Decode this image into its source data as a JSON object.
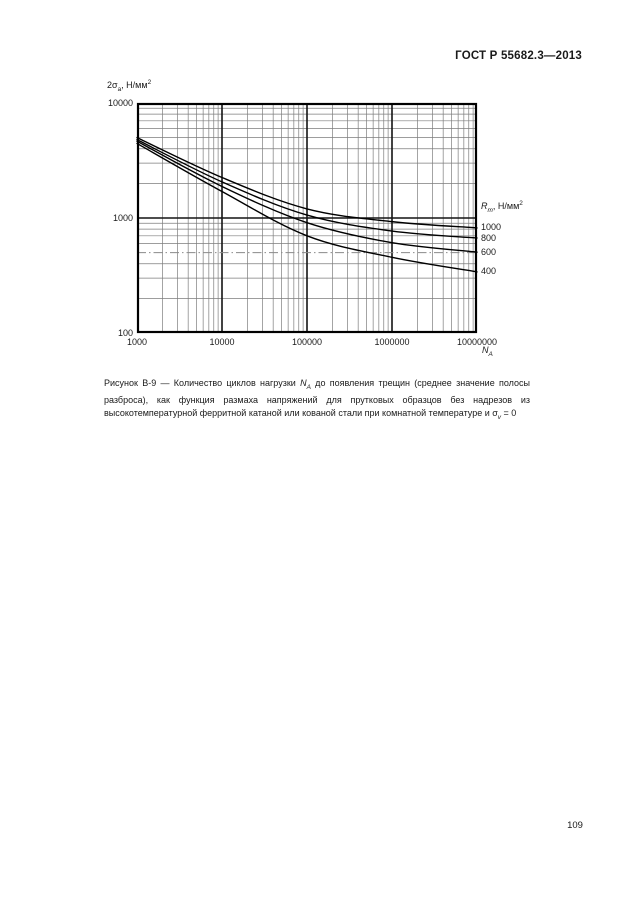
{
  "page": {
    "header": "ГОСТ Р 55682.3—2013",
    "page_number": "109"
  },
  "figure": {
    "caption_parts": [
      {
        "t": "Рисунок В-9 — Количество циклов нагрузки "
      },
      {
        "t": "N",
        "i": true
      },
      {
        "t": "A",
        "sub": true,
        "i": true
      },
      {
        "t": " до появления трещин (среднее значение полосы разброса), как функция размаха напряжений для прутковых образцов без надрезов из высокотемпературной ферритной катаной или кованой стали при комнатной температуре и σ"
      },
      {
        "t": "v",
        "sub": true,
        "i": true
      },
      {
        "t": " = 0"
      }
    ]
  },
  "chart_data": {
    "type": "line",
    "title": "",
    "x_scale": "log",
    "y_scale": "log",
    "xlim": [
      1000,
      10000000
    ],
    "ylim": [
      100,
      10000
    ],
    "grid": true,
    "legend_position": "right",
    "y_axis_title_parts": [
      {
        "t": "2σ"
      },
      {
        "t": "а",
        "sub": true
      },
      {
        "t": ", Н/мм"
      },
      {
        "t": "2",
        "sup": true
      }
    ],
    "x_axis_title_parts": [
      {
        "t": "N",
        "i": true
      },
      {
        "t": "A",
        "sub": true,
        "i": true
      }
    ],
    "legend_title_parts": [
      {
        "t": "R",
        "i": true
      },
      {
        "t": "m",
        "sub": true,
        "i": true
      },
      {
        "t": ", Н/мм"
      },
      {
        "t": "2",
        "sup": true
      }
    ],
    "x_ticks": [
      {
        "v": 1000,
        "label": "1000"
      },
      {
        "v": 10000,
        "label": "10000"
      },
      {
        "v": 100000,
        "label": "100000"
      },
      {
        "v": 1000000,
        "label": "1000000"
      },
      {
        "v": 10000000,
        "label": "10000000"
      }
    ],
    "y_ticks": [
      {
        "v": 10000,
        "label": "10000"
      },
      {
        "v": 1000,
        "label": "1000"
      },
      {
        "v": 100,
        "label": "100"
      }
    ],
    "marker_line_y": 500,
    "series": [
      {
        "label": "1000",
        "x": [
          1000,
          10000,
          100000,
          1000000,
          10000000
        ],
        "y": [
          5000,
          2250,
          1200,
          930,
          820
        ]
      },
      {
        "label": "800",
        "x": [
          1000,
          10000,
          100000,
          1000000,
          10000000
        ],
        "y": [
          4800,
          2060,
          1060,
          770,
          670
        ]
      },
      {
        "label": "600",
        "x": [
          1000,
          10000,
          100000,
          1000000,
          10000000
        ],
        "y": [
          4650,
          1880,
          910,
          610,
          505
        ]
      },
      {
        "label": "400",
        "x": [
          1000,
          10000,
          100000,
          1000000,
          10000000
        ],
        "y": [
          4450,
          1700,
          700,
          455,
          340
        ]
      }
    ]
  }
}
